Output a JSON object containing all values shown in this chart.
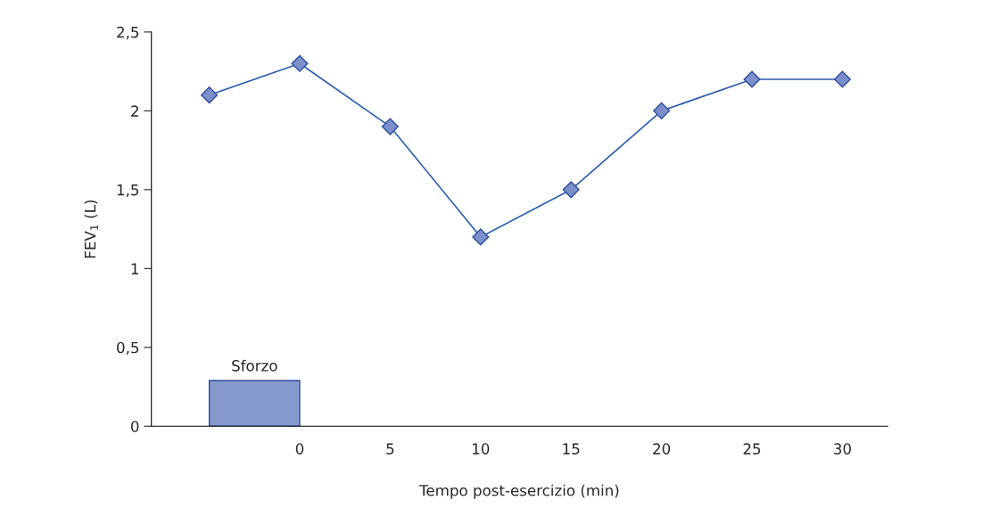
{
  "chart_data": {
    "type": "line",
    "xlabel": "Tempo post-esercizio (min)",
    "ylabel": "FEV$_{1}$ (L)",
    "series": [
      {
        "color": "#2b5fae",
        "x": [
          -5,
          0,
          5,
          10,
          15,
          20,
          25,
          30
        ],
        "values": [
          2.1,
          2.3,
          1.9,
          1.2,
          1.5,
          2.0,
          2.2,
          2.2
        ]
      },
      {
        "type": "bar",
        "name": "Sforzo",
        "color": "#8599cc",
        "x": [
          -2.5
        ],
        "values": [
          0.29
        ]
      }
    ],
    "marker": "diamond",
    "xlim": [
      -8.2,
      32.5
    ],
    "xticks": [
      0,
      5,
      10,
      15,
      20,
      25,
      30
    ],
    "ylim": [
      0,
      2.5
    ],
    "yticks": [
      0,
      {
        "value": 0.5,
        "label": "0,5"
      },
      1,
      {
        "value": 1.5,
        "label": "1,5"
      },
      2,
      {
        "value": 2.5,
        "label": "2,5"
      }
    ],
    "grid": false,
    "legend": false
  }
}
